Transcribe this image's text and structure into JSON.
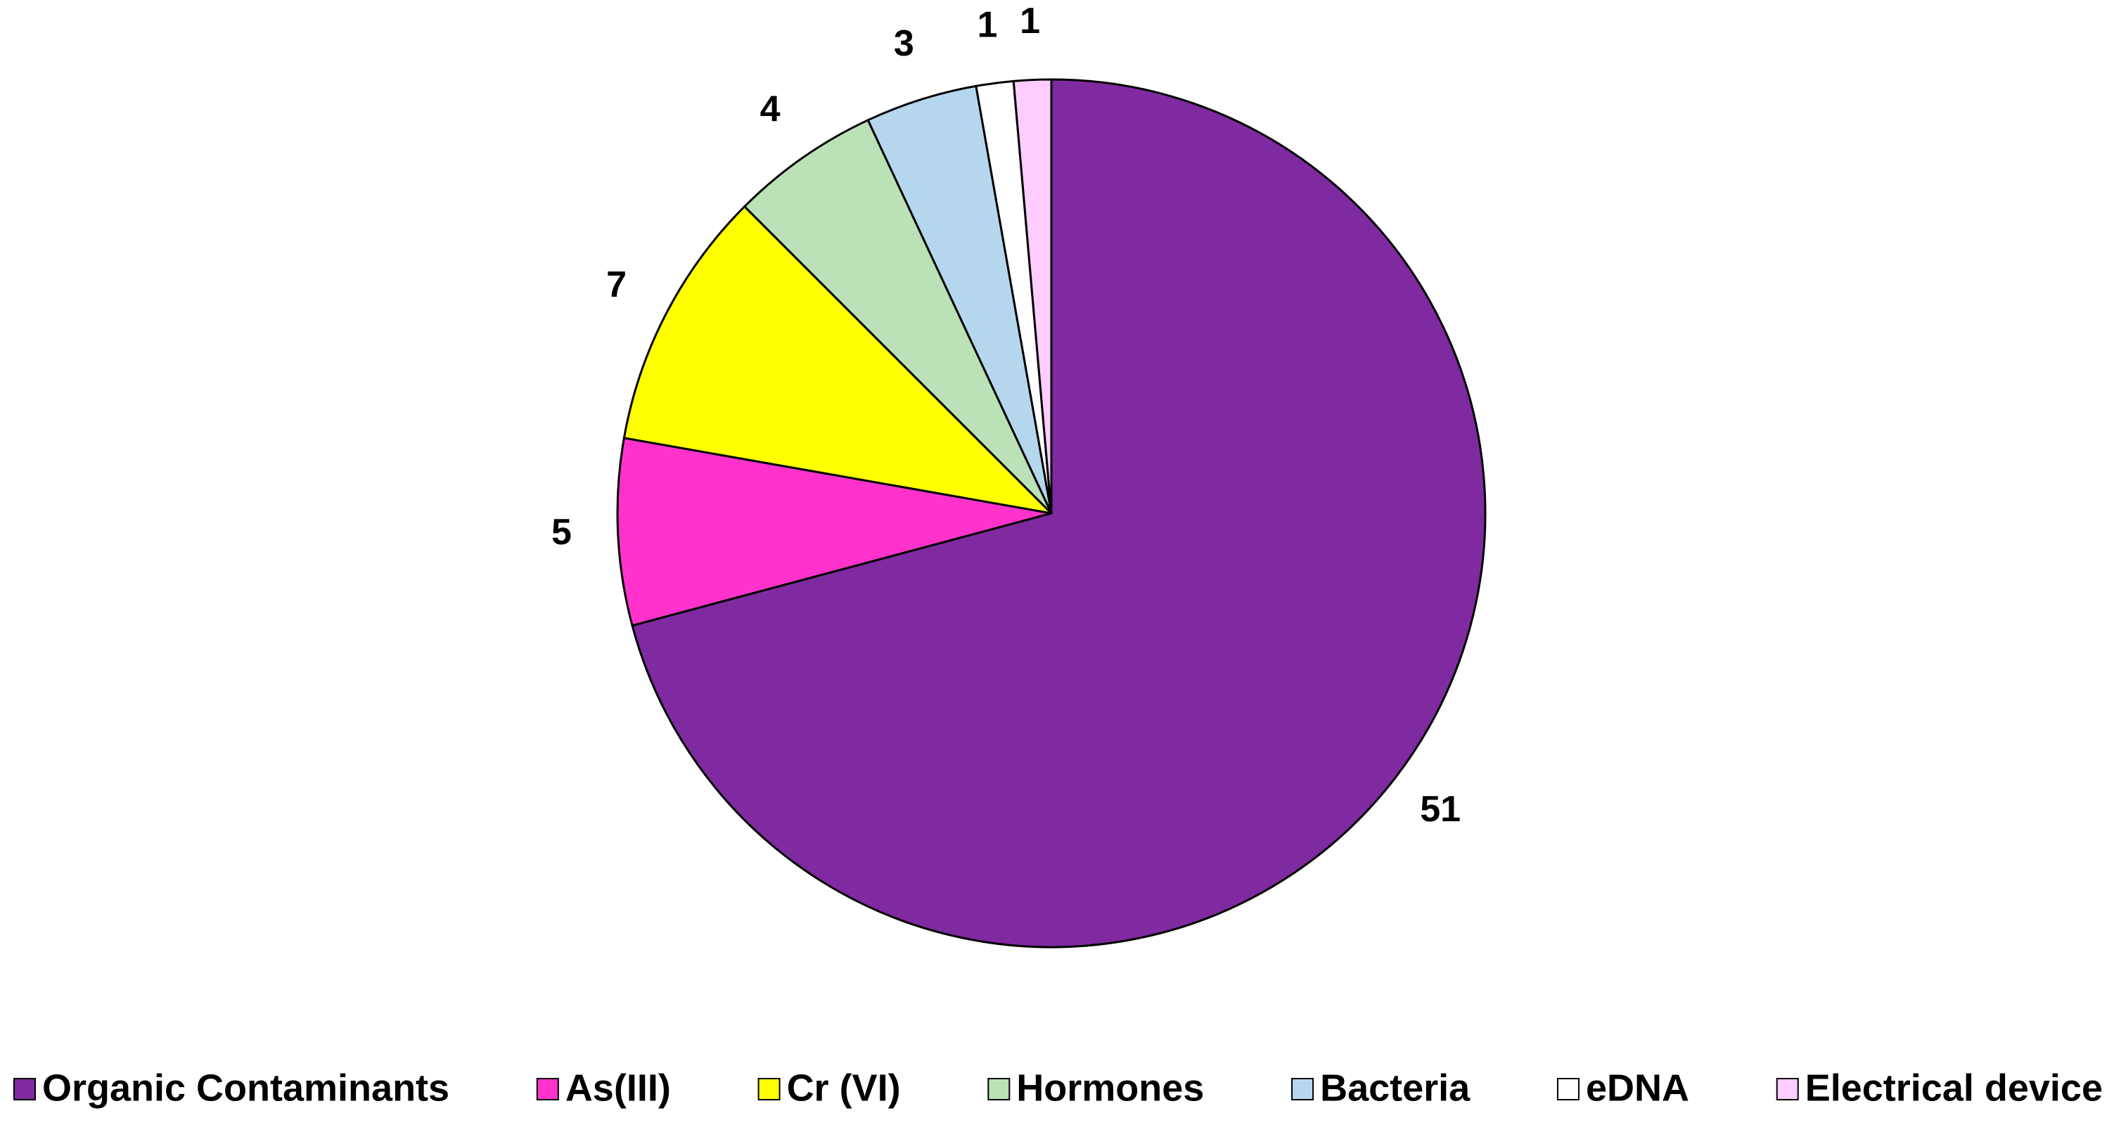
{
  "chart_data": {
    "type": "pie",
    "categories": [
      "Organic Contaminants",
      "As(III)",
      "Cr (VI)",
      "Hormones",
      "Bacteria",
      "eDNA",
      "Electrical device"
    ],
    "values": [
      51,
      5,
      7,
      4,
      3,
      1,
      1
    ],
    "colors": [
      "#7f2aa0",
      "#ff33cc",
      "#ffff00",
      "#bbe1b6",
      "#b5d7ee",
      "#ffffff",
      "#ffccff"
    ],
    "legend": "bottom"
  }
}
